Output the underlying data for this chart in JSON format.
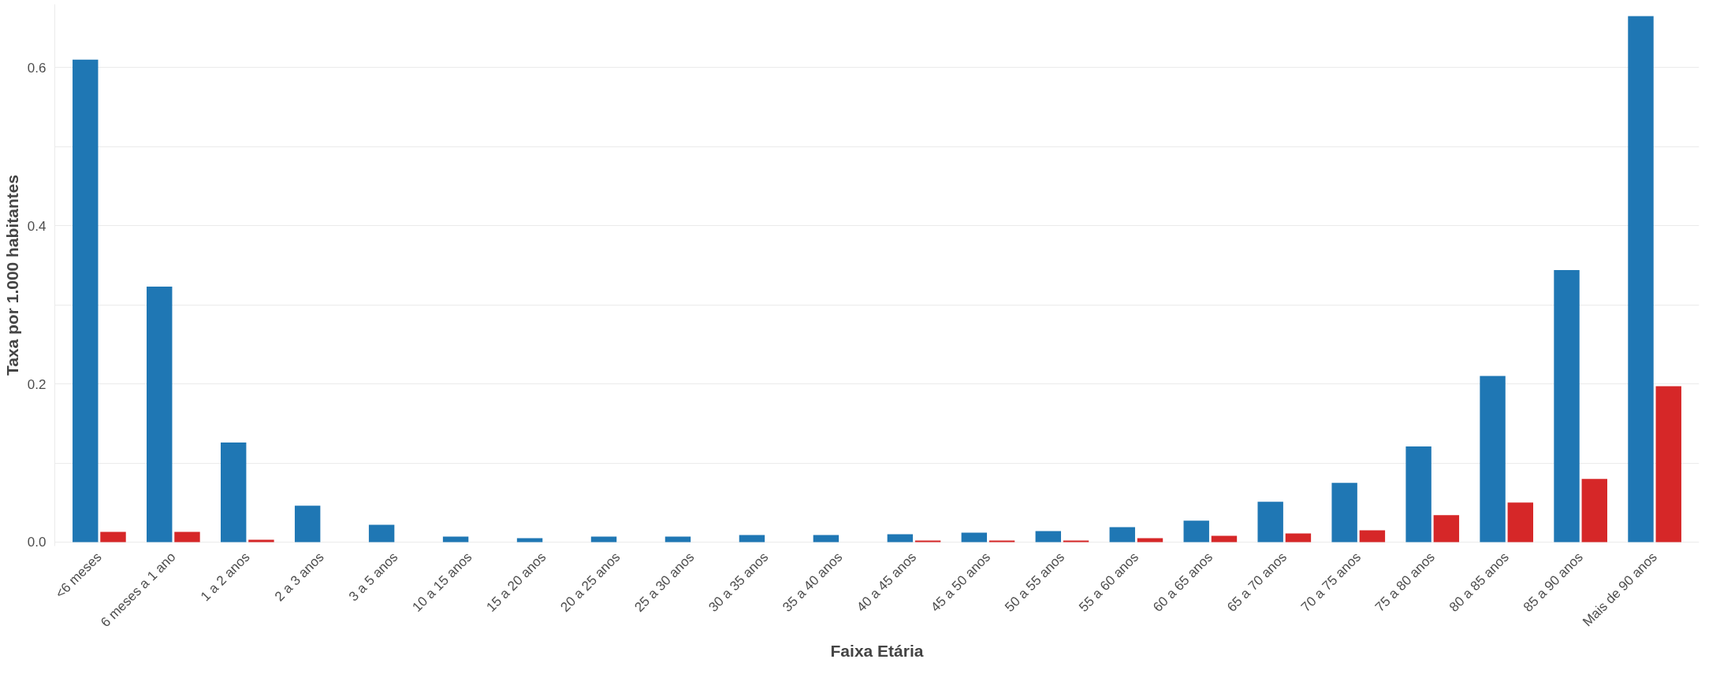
{
  "chart_data": {
    "type": "bar",
    "xlabel": "Faixa Etária",
    "ylabel": "Taxa por 1.000 habitantes",
    "categories": [
      "<6 meses",
      "6 meses a 1 ano",
      "1 a 2 anos",
      "2 a 3 anos",
      "3 a 5 anos",
      "10 a 15 anos",
      "15 a 20 anos",
      "20 a 25 anos",
      "25 a 30 anos",
      "30 a 35 anos",
      "35 a 40 anos",
      "40 a 45 anos",
      "45 a 50 anos",
      "50 a 55 anos",
      "55 a 60 anos",
      "60 a 65 anos",
      "65 a 70 anos",
      "70 a 75 anos",
      "75 a 80 anos",
      "80 a 85 anos",
      "85 a 90 anos",
      "Mais de 90 anos"
    ],
    "series": [
      {
        "color": "#1f77b4",
        "values": [
          0.61,
          0.323,
          0.126,
          0.046,
          0.022,
          0.007,
          0.005,
          0.007,
          0.007,
          0.009,
          0.009,
          0.01,
          0.012,
          0.014,
          0.019,
          0.027,
          0.051,
          0.075,
          0.121,
          0.21,
          0.344,
          0.665
        ]
      },
      {
        "color": "#d62728",
        "values": [
          0.013,
          0.013,
          0.003,
          null,
          null,
          null,
          null,
          null,
          null,
          null,
          null,
          0.002,
          0.002,
          0.002,
          0.005,
          0.008,
          0.011,
          0.015,
          0.034,
          0.05,
          0.08,
          0.197
        ]
      }
    ],
    "ylim": [
      -0.005,
      0.68
    ],
    "yticks": [
      {
        "value": 0,
        "label": "0.0"
      },
      {
        "value": 0.1,
        "label": null
      },
      {
        "value": 0.2,
        "label": "0.2"
      },
      {
        "value": 0.3,
        "label": null
      },
      {
        "value": 0.4,
        "label": "0.4"
      },
      {
        "value": 0.5,
        "label": null
      },
      {
        "value": 0.6,
        "label": "0.6"
      }
    ],
    "grid": "y"
  }
}
